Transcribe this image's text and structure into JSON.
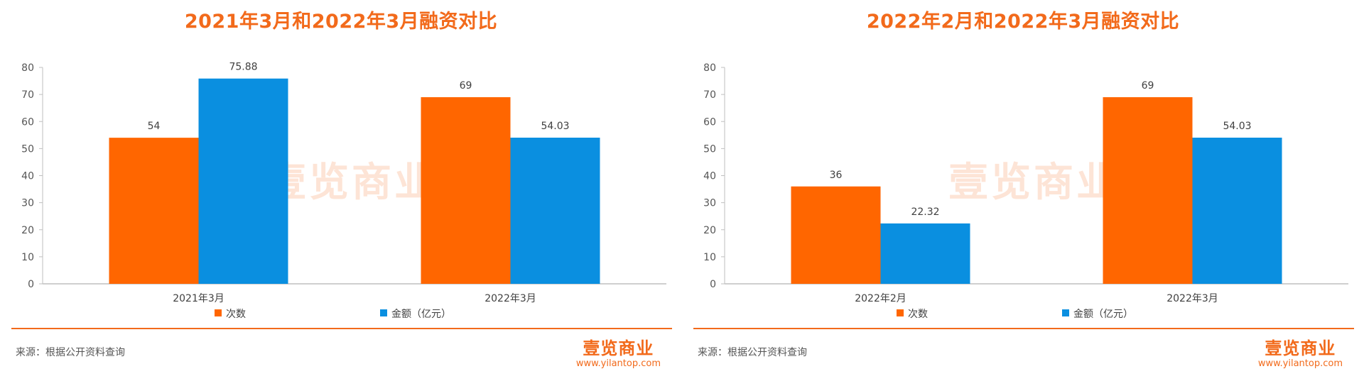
{
  "source_label": "来源：根据公开资料查询",
  "brand": {
    "name": "壹览商业",
    "url": "www.yilantop.com",
    "watermark": "壹览商业"
  },
  "colors": {
    "count": "#FF6600",
    "amount": "#0A8FE0",
    "accent": "#F26A1B"
  },
  "chart_data": [
    {
      "type": "bar",
      "title": "2021年3月和2022年3月融资对比",
      "categories": [
        "2021年3月",
        "2022年3月"
      ],
      "series": [
        {
          "name": "次数",
          "values": [
            54,
            69
          ],
          "labels": [
            "54",
            "69"
          ]
        },
        {
          "name": "金额（亿元）",
          "values": [
            75.88,
            54.03
          ],
          "labels": [
            "75.88",
            "54.03"
          ]
        }
      ],
      "ylim": [
        0,
        80
      ],
      "yticks": [
        "0",
        "10",
        "20",
        "30",
        "40",
        "50",
        "60",
        "70",
        "80"
      ],
      "legend": "bottom",
      "grid": false
    },
    {
      "type": "bar",
      "title": "2022年2月和2022年3月融资对比",
      "categories": [
        "2022年2月",
        "2022年3月"
      ],
      "series": [
        {
          "name": "次数",
          "values": [
            36,
            69
          ],
          "labels": [
            "36",
            "69"
          ]
        },
        {
          "name": "金额（亿元）",
          "values": [
            22.32,
            54.03
          ],
          "labels": [
            "22.32",
            "54.03"
          ]
        }
      ],
      "ylim": [
        0,
        80
      ],
      "yticks": [
        "0",
        "10",
        "20",
        "30",
        "40",
        "50",
        "60",
        "70",
        "80"
      ],
      "legend": "bottom",
      "grid": false
    }
  ]
}
